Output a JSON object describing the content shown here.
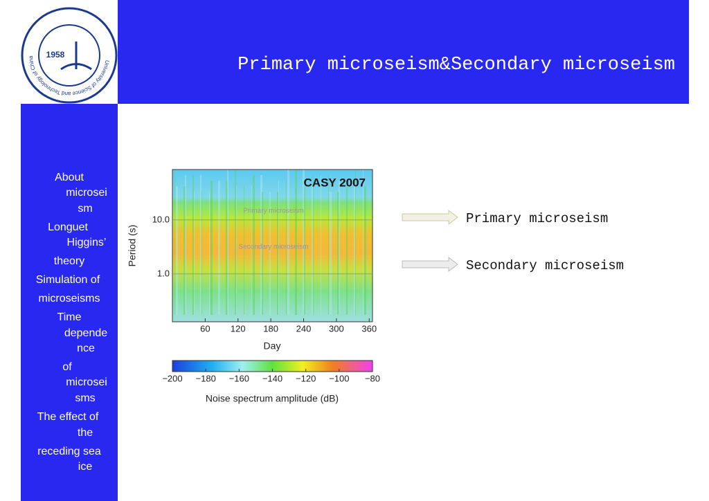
{
  "header": {
    "title": "Primary microseism&Secondary microseism",
    "logo": {
      "year": "1958",
      "ring_text": "University of Science and Technology of China"
    }
  },
  "sidebar": {
    "items": [
      [
        "About",
        "microsei",
        "sm"
      ],
      [
        "Longuet",
        "Higgins’",
        "theory"
      ],
      [
        "Simulation of",
        "microseisms"
      ],
      [
        "Time",
        "depende",
        "nce"
      ],
      [
        "of",
        "microsei",
        "sms"
      ],
      [
        "The effect of",
        "the",
        "receding sea",
        "ice"
      ]
    ]
  },
  "figure": {
    "title": "CASY 2007",
    "ylabel": "Period (s)",
    "xlabel": "Day",
    "yscale": "log",
    "ylim": [
      0.13,
      86
    ],
    "yticks": [
      {
        "value": 10,
        "label": "10.0"
      },
      {
        "value": 1,
        "label": "1.0"
      }
    ],
    "xlim": [
      0,
      366
    ],
    "xticks": [
      60,
      120,
      180,
      240,
      300,
      360
    ],
    "bands": [
      {
        "label": "Primary microseism"
      },
      {
        "label": "Secondary microseism"
      }
    ],
    "colorbar": {
      "label": "Noise spectrum amplitude (dB)",
      "lim": [
        -200,
        -80
      ],
      "ticks": [
        {
          "value": -200,
          "label": "−200"
        },
        {
          "value": -180,
          "label": "−180"
        },
        {
          "value": -160,
          "label": "−160"
        },
        {
          "value": -140,
          "label": "−140"
        },
        {
          "value": -120,
          "label": "−120"
        },
        {
          "value": -100,
          "label": "−100"
        },
        {
          "value": -80,
          "label": "−80"
        }
      ]
    }
  },
  "annotations": [
    "Primary microseism",
    "Secondary microseism"
  ]
}
